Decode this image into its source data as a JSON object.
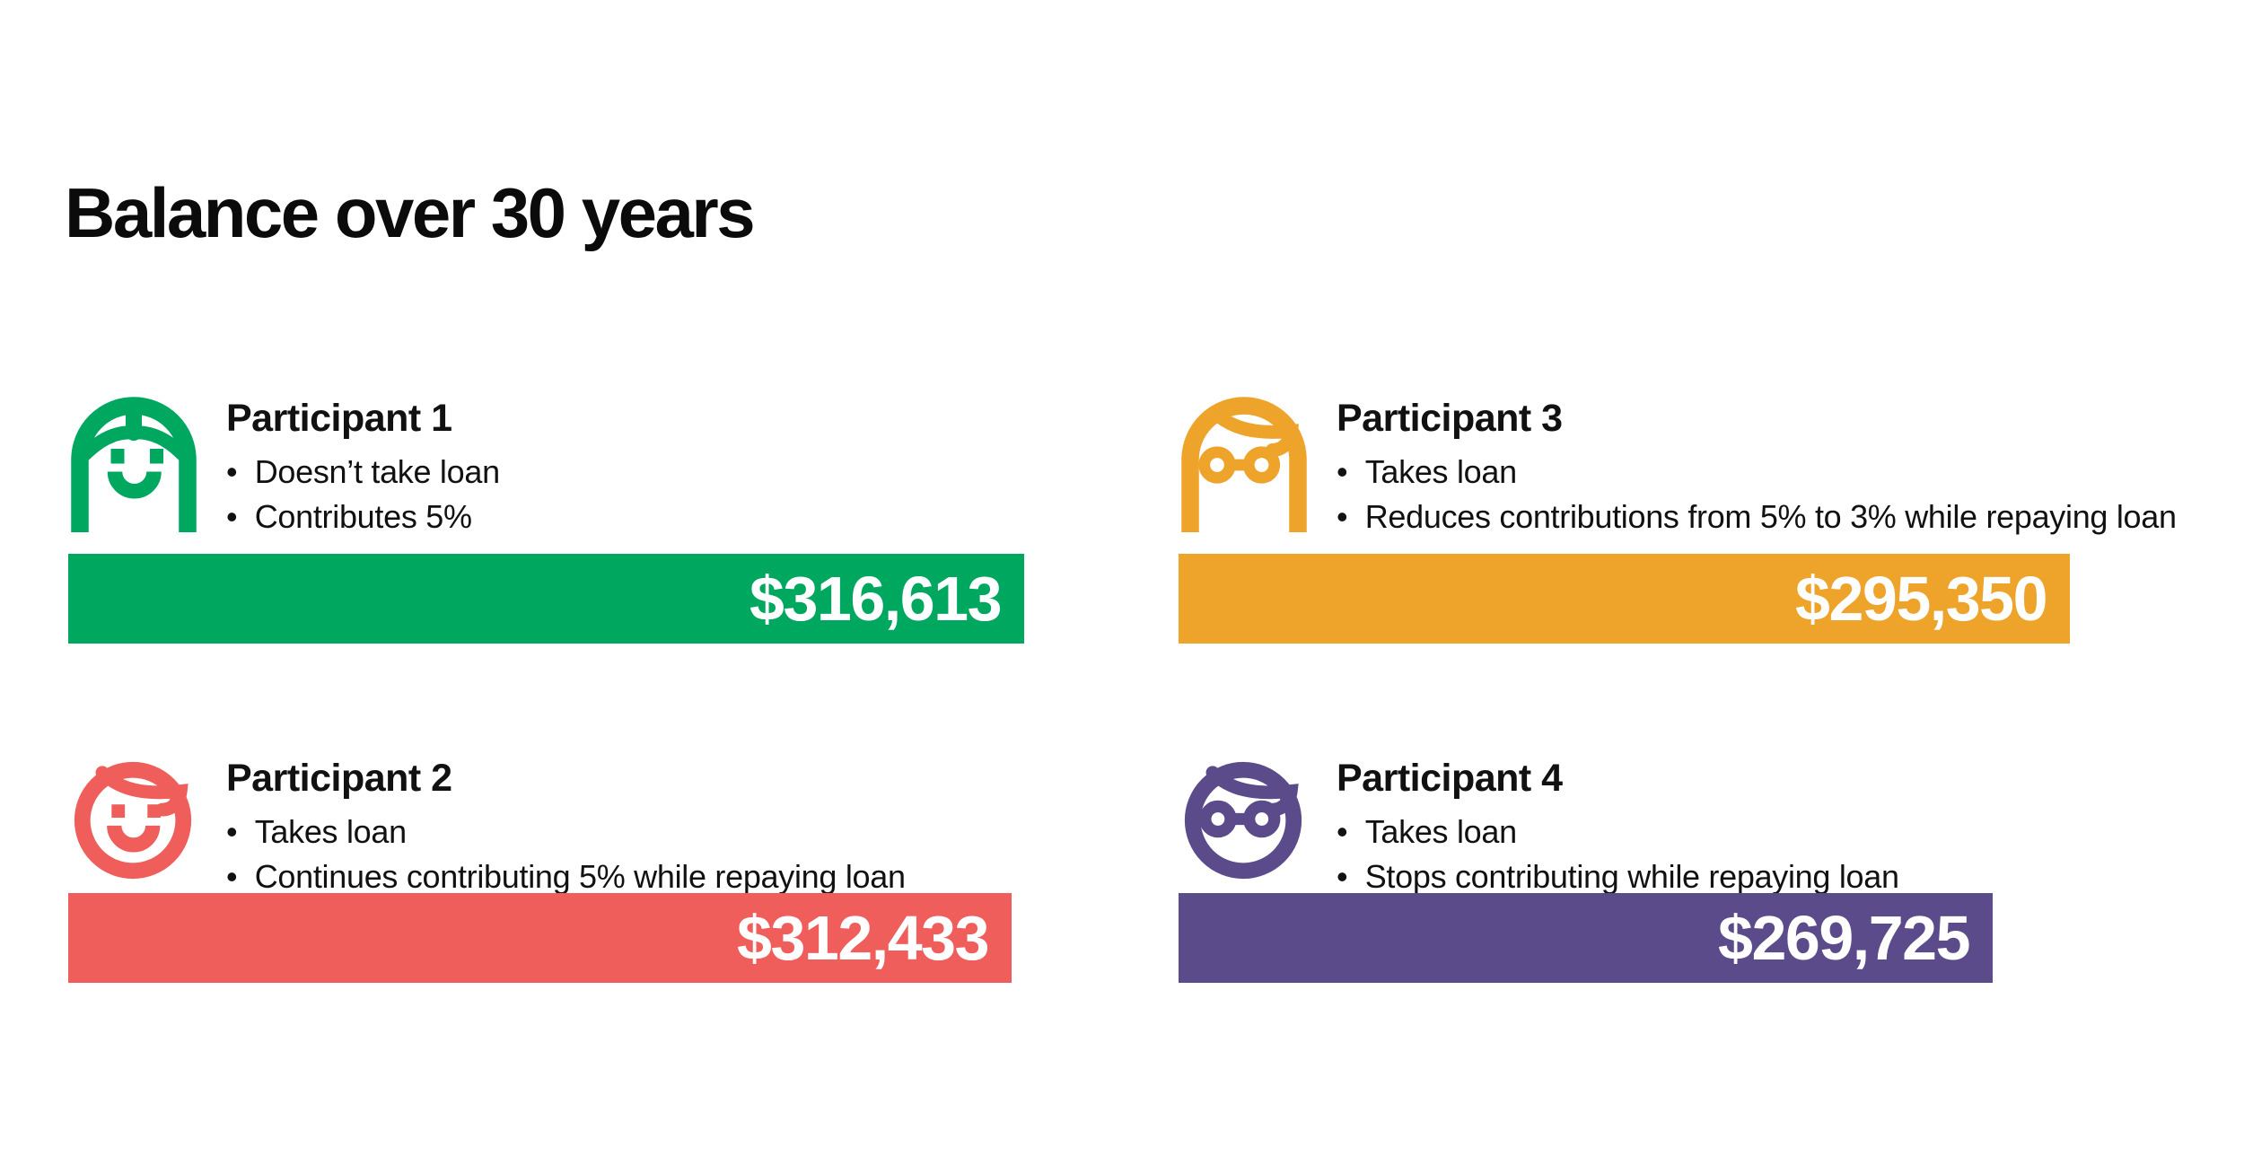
{
  "title": "Balance over 30 years",
  "participants": [
    {
      "name": "Participant 1",
      "bullets": [
        "Doesn’t take loan",
        "Contributes 5%"
      ],
      "value": 316613,
      "value_label": "$316,613",
      "color": "#00A75F",
      "icon": "woman-long-hair-smiling-icon"
    },
    {
      "name": "Participant 2",
      "bullets": [
        "Takes loan",
        "Continues contributing 5% while repaying loan"
      ],
      "value": 312433,
      "value_label": "$312,433",
      "color": "#F05E5C",
      "icon": "person-round-face-smiling-icon"
    },
    {
      "name": "Participant 3",
      "bullets": [
        "Takes loan",
        "Reduces contributions from 5% to 3% while repaying loan"
      ],
      "value": 295350,
      "value_label": "$295,350",
      "color": "#EEA32B",
      "icon": "woman-long-hair-glasses-icon"
    },
    {
      "name": "Participant 4",
      "bullets": [
        "Takes loan",
        "Stops contributing while repaying loan"
      ],
      "value": 269725,
      "value_label": "$269,725",
      "color": "#5C4B8B",
      "icon": "person-round-face-glasses-icon"
    }
  ],
  "chart_data": {
    "type": "bar",
    "title": "Balance over 30 years",
    "categories": [
      "Participant 1",
      "Participant 2",
      "Participant 3",
      "Participant 4"
    ],
    "values": [
      316613,
      312433,
      295350,
      269725
    ],
    "value_labels": [
      "$316,613",
      "$312,433",
      "$295,350",
      "$269,725"
    ],
    "colors": [
      "#00A75F",
      "#F05E5C",
      "#EEA32B",
      "#5C4B8B"
    ],
    "orientation": "horizontal",
    "grid": false,
    "legend": "none",
    "value_label_position": "inside-end",
    "xlim": [
      0,
      316613
    ],
    "notes": [
      [
        "Doesn’t take loan",
        "Contributes 5%"
      ],
      [
        "Takes loan",
        "Continues contributing 5% while repaying loan"
      ],
      [
        "Takes loan",
        "Reduces contributions from 5% to 3% while repaying loan"
      ],
      [
        "Takes loan",
        "Stops contributing while repaying loan"
      ]
    ]
  }
}
